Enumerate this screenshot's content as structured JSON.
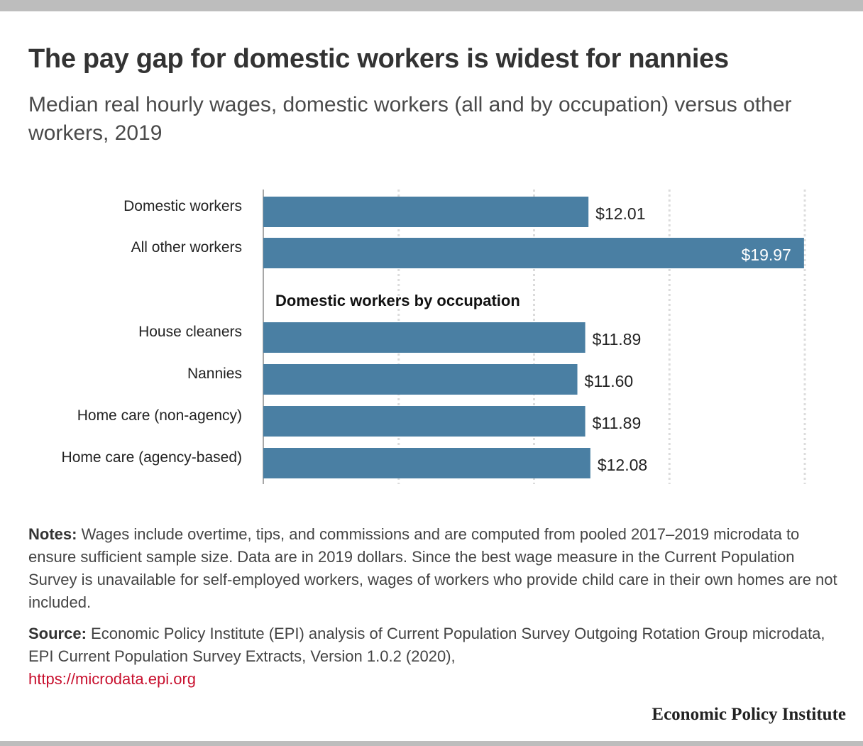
{
  "title": "The pay gap for domestic workers is widest for nannies",
  "subtitle": "Median real hourly wages, domestic workers (all and by occupation) versus other workers, 2019",
  "chart_data": {
    "type": "bar",
    "orientation": "horizontal",
    "categories": [
      "Domestic workers",
      "All other workers",
      "House cleaners",
      "Nannies",
      "Home care (non-agency)",
      "Home care (agency-based)"
    ],
    "values": [
      12.01,
      19.97,
      11.89,
      11.6,
      11.89,
      12.08
    ],
    "data_labels": [
      "$12.01",
      "$19.97",
      "$11.89",
      "$11.60",
      "$11.89",
      "$12.08"
    ],
    "group_heading": "Domestic workers by occupation",
    "xlim": [
      0,
      20
    ],
    "gridlines": [
      5,
      10,
      15,
      20
    ],
    "grid": true,
    "bar_color": "#4a7fa3"
  },
  "notes": {
    "label": "Notes:",
    "text": " Wages include overtime, tips, and commissions and are computed from pooled 2017–2019 microdata to ensure sufficient sample size. Data are in 2019 dollars. Since the best wage measure in the Current Population Survey is unavailable for self-employed workers, wages of workers who provide child care in their own homes are not included."
  },
  "source": {
    "label": "Source:",
    "text": " Economic Policy Institute (EPI) analysis of Current Population Survey Outgoing Rotation Group microdata, EPI Current Population Survey Extracts, Version 1.0.2 (2020),",
    "link": "https://microdata.epi.org"
  },
  "brand": "Economic Policy Institute"
}
